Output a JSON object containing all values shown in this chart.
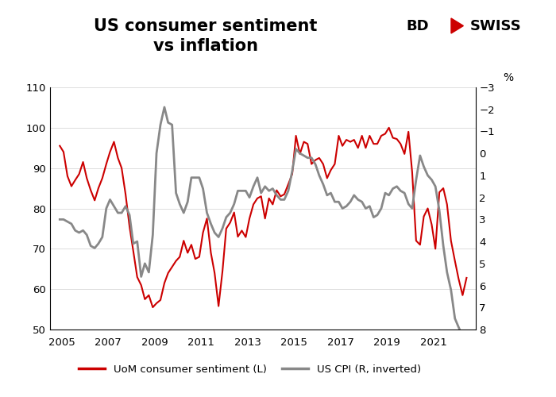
{
  "title": "US consumer sentiment\nvs inflation",
  "right_ylabel": "%",
  "left_ylim": [
    50,
    110
  ],
  "left_yticks": [
    50,
    60,
    70,
    80,
    90,
    100,
    110
  ],
  "right_ylim": [
    -3,
    8
  ],
  "right_yticks": [
    -3,
    -2,
    -1,
    0,
    1,
    2,
    3,
    4,
    5,
    6,
    7,
    8
  ],
  "xlim_start": 2004.5,
  "xlim_end": 2022.8,
  "xticks": [
    2005,
    2007,
    2009,
    2011,
    2013,
    2015,
    2017,
    2019,
    2021
  ],
  "red_color": "#cc0000",
  "gray_color": "#888888",
  "legend_label_red": "UoM consumer sentiment (L)",
  "legend_label_gray": "US CPI (R, inverted)",
  "background_color": "#ffffff",
  "title_fontsize": 15,
  "uom_x": [
    2004.92,
    2005.08,
    2005.25,
    2005.42,
    2005.58,
    2005.75,
    2005.92,
    2006.08,
    2006.25,
    2006.42,
    2006.58,
    2006.75,
    2006.92,
    2007.08,
    2007.25,
    2007.42,
    2007.58,
    2007.75,
    2007.92,
    2008.08,
    2008.25,
    2008.42,
    2008.58,
    2008.75,
    2008.92,
    2009.08,
    2009.25,
    2009.42,
    2009.58,
    2009.75,
    2009.92,
    2010.08,
    2010.25,
    2010.42,
    2010.58,
    2010.75,
    2010.92,
    2011.08,
    2011.25,
    2011.42,
    2011.58,
    2011.75,
    2011.92,
    2012.08,
    2012.25,
    2012.42,
    2012.58,
    2012.75,
    2012.92,
    2013.08,
    2013.25,
    2013.42,
    2013.58,
    2013.75,
    2013.92,
    2014.08,
    2014.25,
    2014.42,
    2014.58,
    2014.75,
    2014.92,
    2015.08,
    2015.25,
    2015.42,
    2015.58,
    2015.75,
    2015.92,
    2016.08,
    2016.25,
    2016.42,
    2016.58,
    2016.75,
    2016.92,
    2017.08,
    2017.25,
    2017.42,
    2017.58,
    2017.75,
    2017.92,
    2018.08,
    2018.25,
    2018.42,
    2018.58,
    2018.75,
    2018.92,
    2019.08,
    2019.25,
    2019.42,
    2019.58,
    2019.75,
    2019.92,
    2020.08,
    2020.25,
    2020.42,
    2020.58,
    2020.75,
    2020.92,
    2021.08,
    2021.25,
    2021.42,
    2021.58,
    2021.75,
    2021.92,
    2022.08,
    2022.25,
    2022.42
  ],
  "uom_y": [
    95.5,
    94.0,
    88.0,
    85.5,
    87.0,
    88.5,
    91.5,
    87.5,
    84.5,
    82.0,
    85.0,
    87.5,
    91.0,
    94.0,
    96.5,
    92.5,
    90.0,
    83.5,
    75.5,
    69.5,
    63.0,
    61.0,
    57.5,
    58.5,
    55.5,
    56.5,
    57.3,
    61.5,
    64.0,
    65.5,
    67.0,
    68.0,
    72.0,
    69.0,
    71.0,
    67.5,
    68.0,
    74.0,
    77.5,
    69.0,
    64.0,
    55.8,
    64.5,
    75.0,
    76.5,
    79.0,
    73.0,
    74.5,
    72.9,
    77.5,
    81.0,
    82.5,
    83.0,
    77.5,
    82.5,
    81.0,
    84.5,
    83.0,
    83.5,
    86.0,
    88.5,
    98.0,
    93.5,
    96.5,
    96.0,
    91.0,
    92.0,
    92.5,
    91.0,
    87.5,
    89.5,
    91.0,
    98.0,
    95.5,
    97.0,
    96.5,
    97.0,
    95.0,
    98.0,
    95.0,
    98.0,
    96.0,
    96.0,
    98.0,
    98.5,
    100.0,
    97.5,
    97.2,
    96.0,
    93.5,
    99.0,
    89.0,
    72.0,
    71.0,
    78.0,
    80.0,
    76.0,
    70.0,
    84.0,
    85.0,
    81.0,
    72.0,
    67.0,
    62.5,
    58.5,
    62.8
  ],
  "cpi_x": [
    2004.92,
    2005.08,
    2005.25,
    2005.42,
    2005.58,
    2005.75,
    2005.92,
    2006.08,
    2006.25,
    2006.42,
    2006.58,
    2006.75,
    2006.92,
    2007.08,
    2007.25,
    2007.42,
    2007.58,
    2007.75,
    2007.92,
    2008.08,
    2008.25,
    2008.42,
    2008.58,
    2008.75,
    2008.92,
    2009.08,
    2009.25,
    2009.42,
    2009.58,
    2009.75,
    2009.92,
    2010.08,
    2010.25,
    2010.42,
    2010.58,
    2010.75,
    2010.92,
    2011.08,
    2011.25,
    2011.42,
    2011.58,
    2011.75,
    2011.92,
    2012.08,
    2012.25,
    2012.42,
    2012.58,
    2012.75,
    2012.92,
    2013.08,
    2013.25,
    2013.42,
    2013.58,
    2013.75,
    2013.92,
    2014.08,
    2014.25,
    2014.42,
    2014.58,
    2014.75,
    2014.92,
    2015.08,
    2015.25,
    2015.42,
    2015.58,
    2015.75,
    2015.92,
    2016.08,
    2016.25,
    2016.42,
    2016.58,
    2016.75,
    2016.92,
    2017.08,
    2017.25,
    2017.42,
    2017.58,
    2017.75,
    2017.92,
    2018.08,
    2018.25,
    2018.42,
    2018.58,
    2018.75,
    2018.92,
    2019.08,
    2019.25,
    2019.42,
    2019.58,
    2019.75,
    2019.92,
    2020.08,
    2020.25,
    2020.42,
    2020.58,
    2020.75,
    2020.92,
    2021.08,
    2021.25,
    2021.42,
    2021.58,
    2021.75,
    2021.92,
    2022.08,
    2022.25,
    2022.42
  ],
  "cpi_y": [
    3.0,
    3.0,
    3.1,
    3.2,
    3.5,
    3.6,
    3.5,
    3.7,
    4.2,
    4.3,
    4.1,
    3.8,
    2.5,
    2.1,
    2.4,
    2.7,
    2.7,
    2.4,
    2.8,
    4.1,
    4.0,
    5.6,
    5.0,
    5.4,
    3.7,
    0.0,
    -1.3,
    -2.1,
    -1.4,
    -1.3,
    1.8,
    2.3,
    2.7,
    2.2,
    1.1,
    1.1,
    1.1,
    1.6,
    2.7,
    3.2,
    3.6,
    3.8,
    3.4,
    2.9,
    2.7,
    2.3,
    1.7,
    1.7,
    1.7,
    2.0,
    1.5,
    1.1,
    1.8,
    1.5,
    1.7,
    1.6,
    1.9,
    2.1,
    2.1,
    1.7,
    0.8,
    -0.2,
    0.0,
    0.1,
    0.2,
    0.2,
    0.5,
    1.0,
    1.4,
    1.9,
    1.8,
    2.2,
    2.2,
    2.5,
    2.4,
    2.2,
    1.9,
    2.1,
    2.2,
    2.5,
    2.4,
    2.9,
    2.8,
    2.5,
    1.8,
    1.9,
    1.6,
    1.5,
    1.7,
    1.8,
    2.3,
    2.5,
    1.2,
    0.1,
    0.6,
    1.0,
    1.2,
    1.5,
    2.6,
    4.2,
    5.4,
    6.2,
    7.5,
    7.9,
    8.3,
    8.5
  ]
}
